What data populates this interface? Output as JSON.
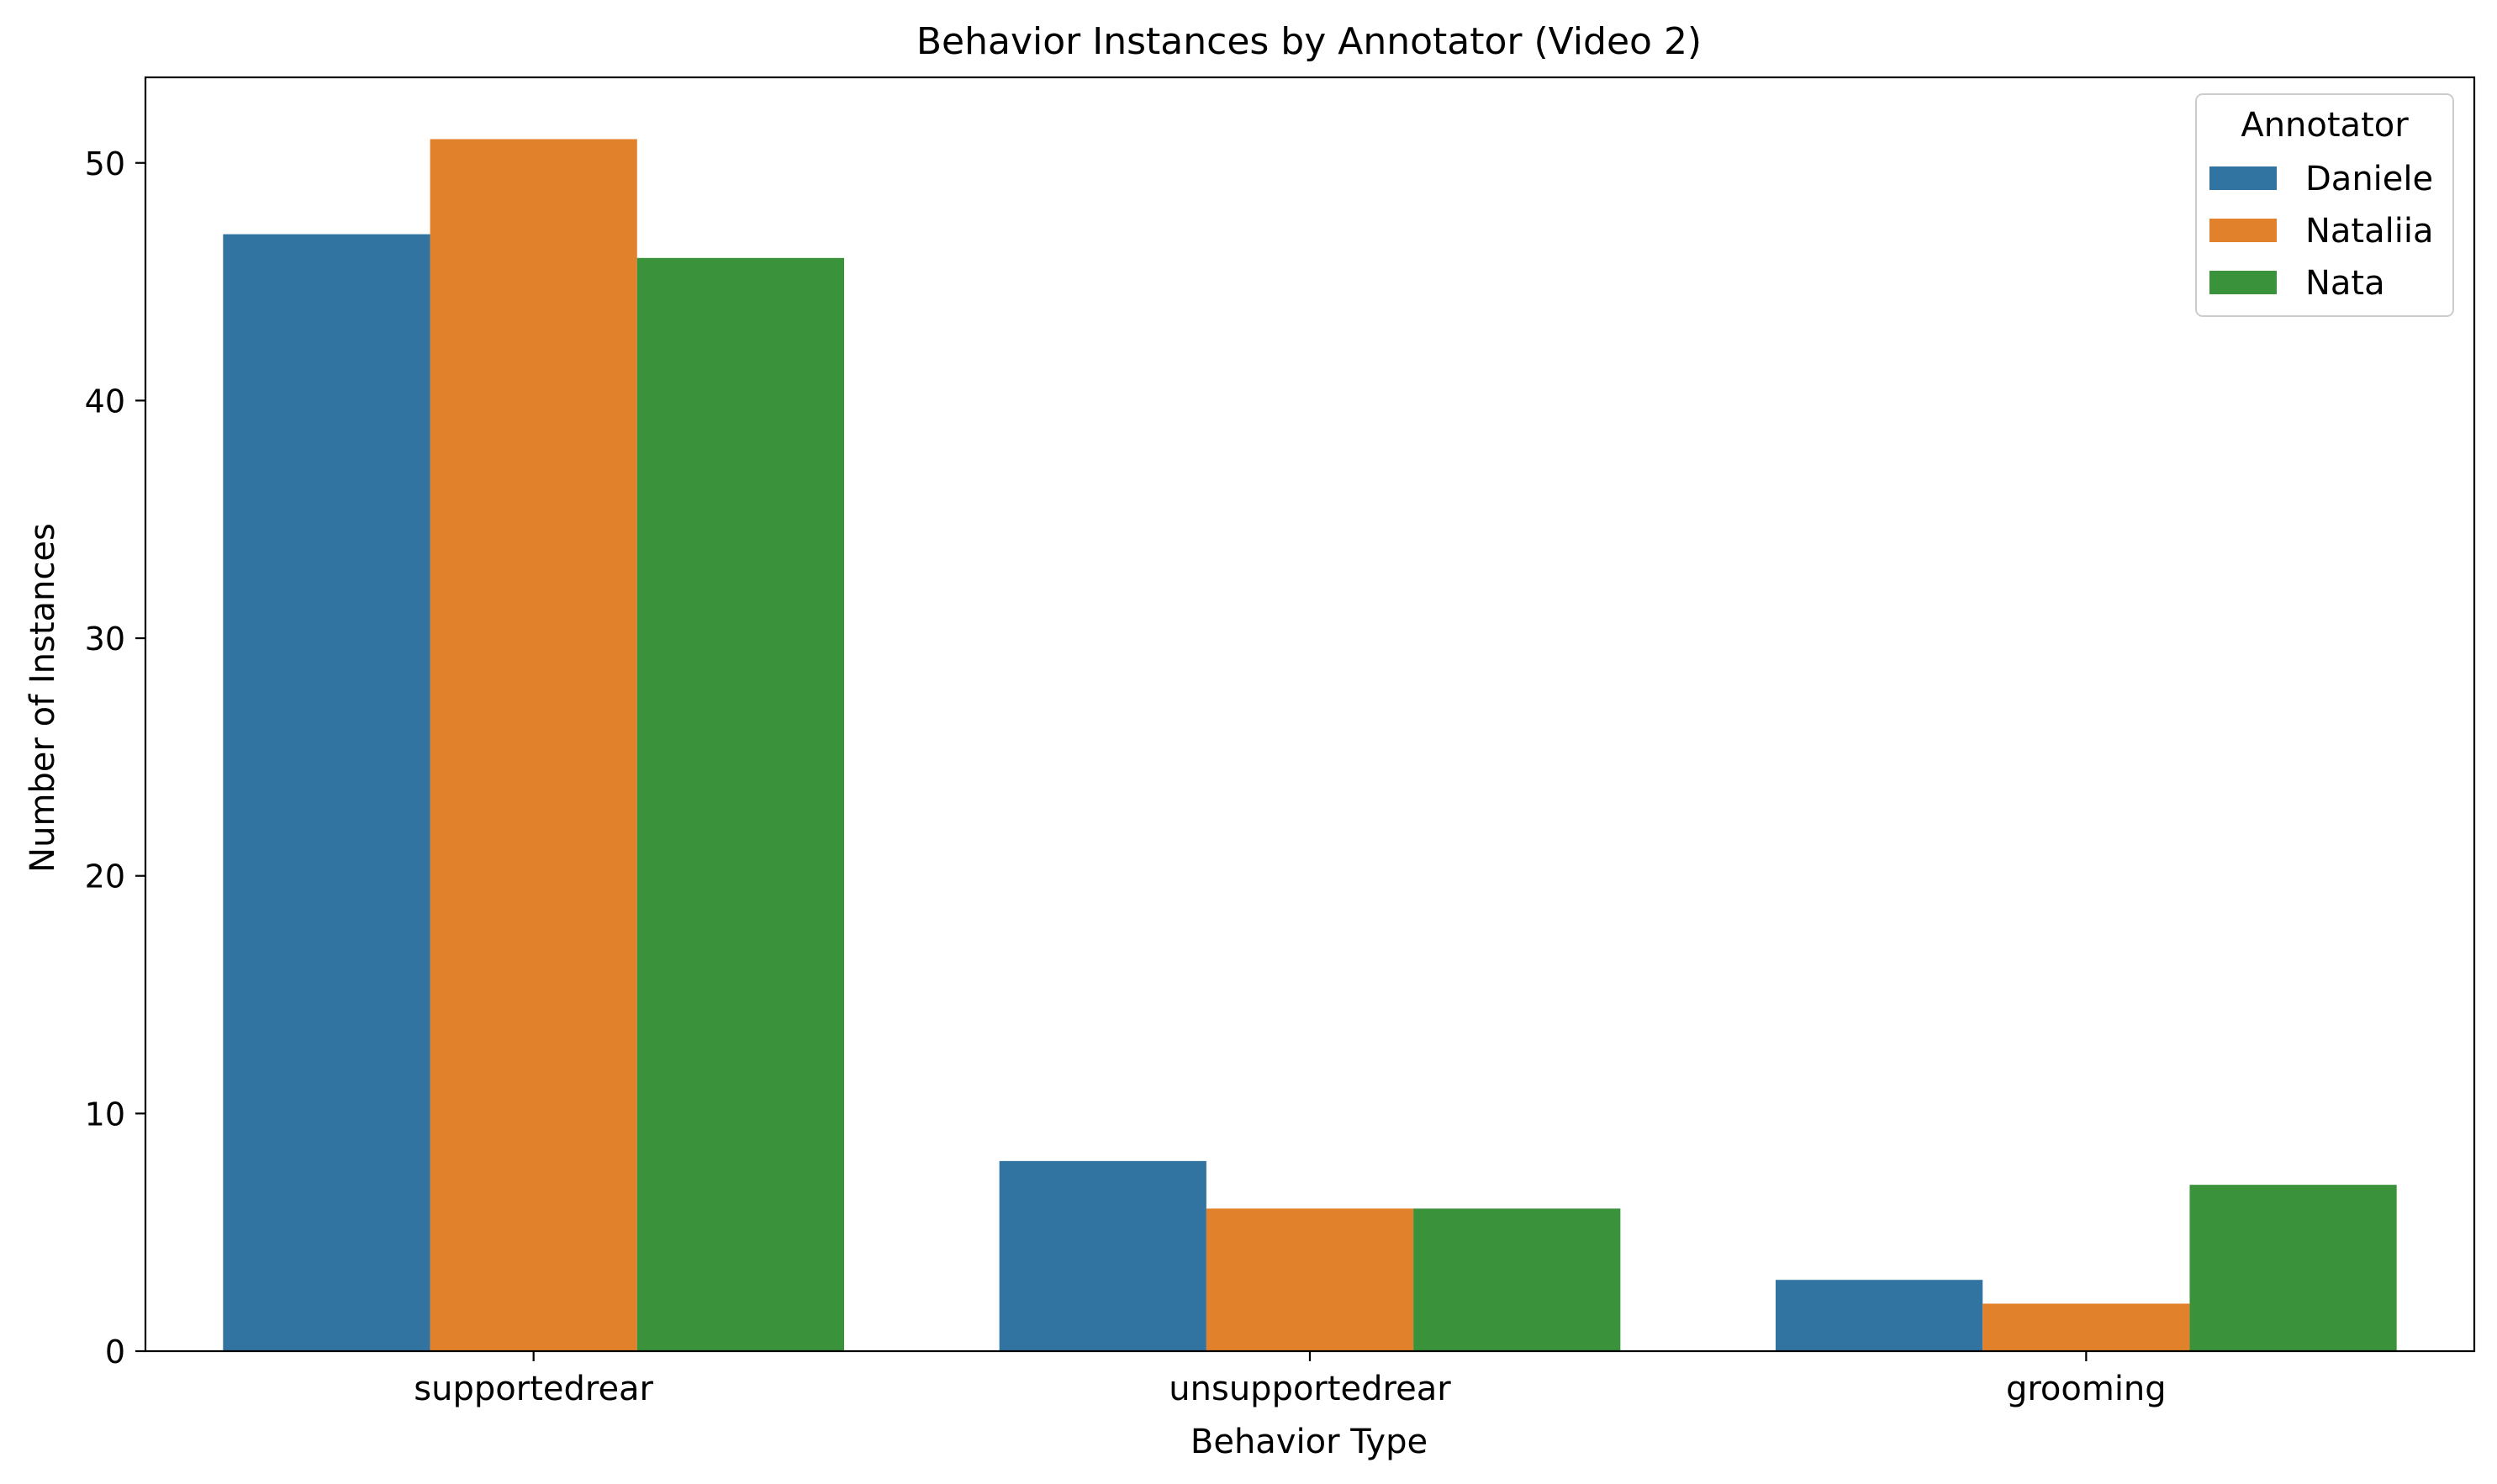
{
  "chart_data": {
    "type": "bar",
    "title": "Behavior Instances by Annotator (Video 2)",
    "xlabel": "Behavior Type",
    "ylabel": "Number of Instances",
    "categories": [
      "supportedrear",
      "unsupportedrear",
      "grooming"
    ],
    "series": [
      {
        "name": "Daniele",
        "color": "#3274a1",
        "values": [
          47,
          8,
          3
        ]
      },
      {
        "name": "Nataliia",
        "color": "#e1812c",
        "values": [
          51,
          6,
          2
        ]
      },
      {
        "name": "Nata",
        "color": "#3a923a",
        "values": [
          46,
          6,
          7
        ]
      }
    ],
    "ylim": [
      0,
      53.6
    ],
    "yticks": [
      0,
      10,
      20,
      30,
      40,
      50
    ],
    "grid": false,
    "legend": {
      "title": "Annotator",
      "placement": "top-right"
    }
  }
}
